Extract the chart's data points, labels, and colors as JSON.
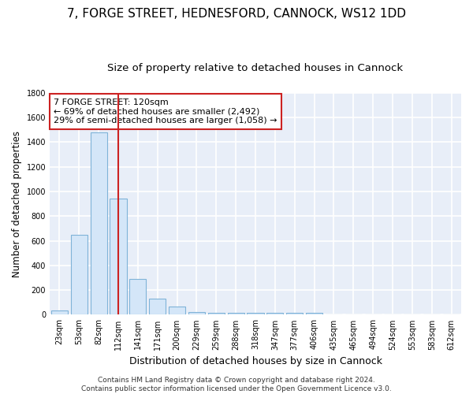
{
  "title1": "7, FORGE STREET, HEDNESFORD, CANNOCK, WS12 1DD",
  "title2": "Size of property relative to detached houses in Cannock",
  "xlabel": "Distribution of detached houses by size in Cannock",
  "ylabel": "Number of detached properties",
  "categories": [
    "23sqm",
    "53sqm",
    "82sqm",
    "112sqm",
    "141sqm",
    "171sqm",
    "200sqm",
    "229sqm",
    "259sqm",
    "288sqm",
    "318sqm",
    "347sqm",
    "377sqm",
    "406sqm",
    "435sqm",
    "465sqm",
    "494sqm",
    "524sqm",
    "553sqm",
    "583sqm",
    "612sqm"
  ],
  "values": [
    35,
    650,
    1480,
    940,
    290,
    130,
    65,
    22,
    15,
    15,
    15,
    15,
    15,
    15,
    0,
    0,
    0,
    0,
    0,
    0,
    0
  ],
  "bar_color": "#d4e6f8",
  "bar_edge_color": "#7fb3d8",
  "vline_x": 3,
  "vline_color": "#cc2222",
  "ylim": [
    0,
    1800
  ],
  "yticks": [
    0,
    200,
    400,
    600,
    800,
    1000,
    1200,
    1400,
    1600,
    1800
  ],
  "annotation_text": "7 FORGE STREET: 120sqm\n← 69% of detached houses are smaller (2,492)\n29% of semi-detached houses are larger (1,058) →",
  "annotation_box_color": "#ffffff",
  "annotation_border_color": "#cc2222",
  "plot_bg_color": "#e8eef8",
  "fig_bg_color": "#ffffff",
  "grid_color": "#ffffff",
  "footer": "Contains HM Land Registry data © Crown copyright and database right 2024.\nContains public sector information licensed under the Open Government Licence v3.0.",
  "title1_fontsize": 11,
  "title2_fontsize": 9.5,
  "xlabel_fontsize": 9,
  "ylabel_fontsize": 8.5,
  "tick_fontsize": 7,
  "annot_fontsize": 8,
  "footer_fontsize": 6.5
}
